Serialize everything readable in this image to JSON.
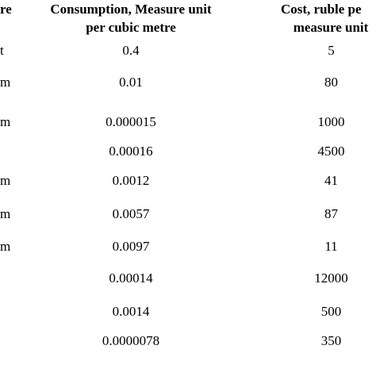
{
  "table": {
    "header": [
      {
        "lines": [
          "re"
        ]
      },
      {
        "lines": [
          "Consumption, Measure unit",
          "per cubic metre"
        ]
      },
      {
        "lines": [
          "Cost, ruble pe",
          "measure unit"
        ]
      }
    ],
    "rows": [
      {
        "label": "t",
        "consumption": "0.4",
        "cost": "5"
      },
      {
        "label": "m",
        "consumption": "0.01",
        "cost": "80"
      },
      {
        "label": "m",
        "consumption": "0.000015",
        "cost": "1000"
      },
      {
        "consumption": "0.00016",
        "cost": "4500"
      },
      {
        "label": "m",
        "consumption": "0.0012",
        "cost": "41"
      },
      {
        "label": "m",
        "consumption": "0.0057",
        "cost": "87"
      },
      {
        "label": "m",
        "consumption": "0.0097",
        "cost": "11"
      },
      {
        "consumption": "0.00014",
        "cost": "12000"
      },
      {
        "consumption": "0.0014",
        "cost": "500"
      },
      {
        "consumption": "0.0000078",
        "cost": "350"
      }
    ]
  }
}
